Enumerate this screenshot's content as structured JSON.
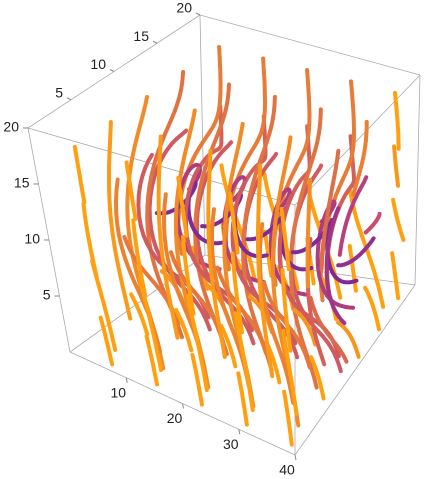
{
  "chart_data": {
    "type": "streamplot3d",
    "xlim": [
      0,
      40
    ],
    "ylim": [
      0,
      20
    ],
    "zlim": [
      0,
      20
    ],
    "xticks": [
      10,
      20,
      30,
      40
    ],
    "yticks": [
      5,
      10,
      15,
      20
    ],
    "zticks": [
      5,
      10,
      15,
      20
    ],
    "colors": [
      "#ffa010",
      "#c04478",
      "#3a0cb4"
    ]
  }
}
